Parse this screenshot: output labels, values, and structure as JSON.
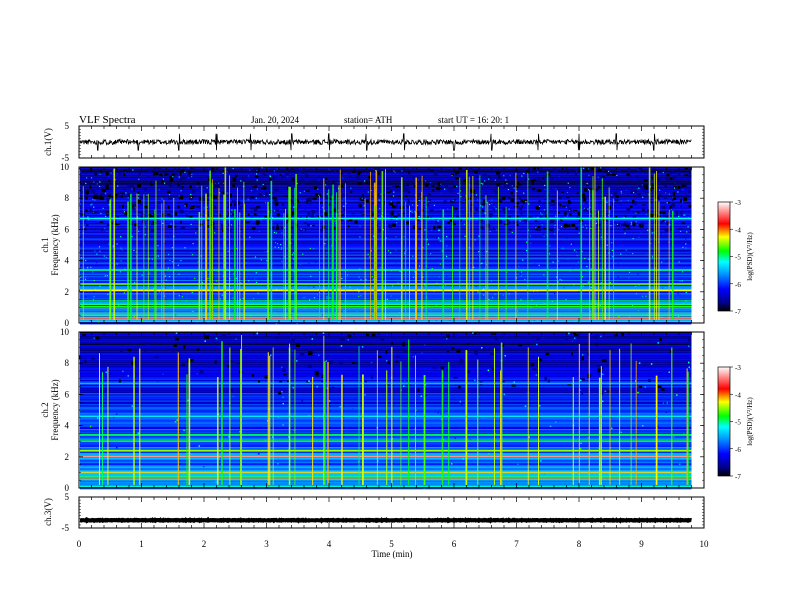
{
  "header": {
    "title": "VLF  Spectra",
    "date": "Jan. 20, 2024",
    "station": "station= ATH",
    "start": "start  UT  =    16: 20: 1"
  },
  "colors": {
    "axis": "#000000",
    "grid_tick": "#000000",
    "colorbar_stops": [
      "#000000",
      "#00008b",
      "#0000ff",
      "#00a0ff",
      "#00ffff",
      "#00ff00",
      "#ffff00",
      "#ff0000",
      "#ffffff"
    ]
  },
  "chart_data": [
    {
      "type": "line",
      "name": "ch1-waveform",
      "ylabel": "ch.1(V)",
      "yticks": [
        "5",
        "-5"
      ],
      "ylim": [
        -5,
        5
      ],
      "xlim": [
        0,
        10
      ],
      "data_end_min": 9.8,
      "baseline": 0,
      "noise_amplitude": 0.8,
      "spike_times": [
        0.3,
        0.95,
        1.6,
        2.2,
        2.75,
        3.4,
        4.0,
        4.6,
        5.2,
        6.0,
        6.6,
        7.35,
        8.0,
        8.6,
        9.2
      ]
    },
    {
      "type": "heatmap",
      "name": "ch1-spectrogram",
      "ylabel": "Frequency (kHz)",
      "channel_label": "ch.1",
      "yticks": [
        "0",
        "2",
        "4",
        "6",
        "8",
        "10"
      ],
      "ylim": [
        0,
        10
      ],
      "xlim": [
        0,
        10
      ],
      "data_end_min": 9.8,
      "z_scale": "log(PSD) (V^2/Hz)",
      "zlim": [
        -7,
        -3
      ],
      "bands_khz": [
        {
          "f": 0.3,
          "level": -3.5
        },
        {
          "f": 0.6,
          "level": -3.6
        },
        {
          "f": 0.9,
          "level": -3.8
        },
        {
          "f": 1.2,
          "level": -4.0
        },
        {
          "f": 2.1,
          "level": -4.3
        },
        {
          "f": 2.5,
          "level": -4.6
        },
        {
          "f": 3.4,
          "level": -5.0
        },
        {
          "f": 6.7,
          "level": -5.2
        }
      ],
      "background_level_low_khz": -5.8,
      "background_level_high_khz": -6.6,
      "sferic_density": 0.55
    },
    {
      "type": "heatmap",
      "name": "ch2-spectrogram",
      "ylabel": "Frequency (kHz)",
      "channel_label": "ch.2",
      "yticks": [
        "0",
        "2",
        "4",
        "6",
        "8",
        "10"
      ],
      "ylim": [
        0,
        10
      ],
      "xlim": [
        0,
        10
      ],
      "data_end_min": 9.8,
      "z_scale": "log(PSD) (V^2/Hz)",
      "zlim": [
        -7,
        -3
      ],
      "bands_khz": [
        {
          "f": 0.3,
          "level": -3.6
        },
        {
          "f": 0.6,
          "level": -3.8
        },
        {
          "f": 1.0,
          "level": -4.2
        },
        {
          "f": 2.0,
          "level": -3.3
        },
        {
          "f": 2.4,
          "level": -4.5
        },
        {
          "f": 3.0,
          "level": -4.8
        },
        {
          "f": 3.4,
          "level": -4.9
        },
        {
          "f": 4.6,
          "level": -5.3
        },
        {
          "f": 6.7,
          "level": -5.5
        }
      ],
      "background_level_low_khz": -5.6,
      "background_level_high_khz": -6.6,
      "sferic_density": 0.5
    },
    {
      "type": "line",
      "name": "ch3-waveform",
      "ylabel": "ch.3(V)",
      "yticks": [
        "5",
        "-5"
      ],
      "ylim": [
        -5,
        5
      ],
      "xlim": [
        0,
        10
      ],
      "data_end_min": 9.8,
      "baseline": -2.5,
      "noise_amplitude": 0.1
    }
  ],
  "xaxis": {
    "label": "Time  (min)",
    "ticks": [
      "0",
      "1",
      "2",
      "3",
      "4",
      "5",
      "6",
      "7",
      "8",
      "9",
      "10"
    ]
  },
  "colorbar": {
    "label": "log(PSD)(V²/Hz)",
    "ticks": [
      "-3",
      "-4",
      "-5",
      "-6",
      "-7"
    ]
  }
}
